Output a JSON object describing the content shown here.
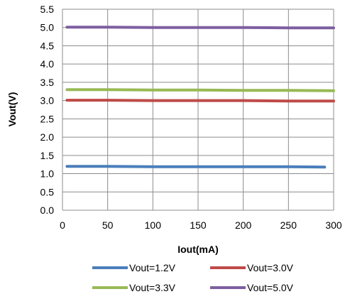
{
  "chart_data": {
    "type": "line",
    "xlabel": "Iout(mA)",
    "ylabel": "Vout(V)",
    "xlim": [
      0,
      300
    ],
    "ylim": [
      0.0,
      5.5
    ],
    "x_ticks": [
      "0",
      "50",
      "100",
      "150",
      "200",
      "250",
      "300"
    ],
    "y_ticks": [
      "0.0",
      "0.5",
      "1.0",
      "1.5",
      "2.0",
      "2.5",
      "3.0",
      "3.5",
      "4.0",
      "4.5",
      "5.0",
      "5.5"
    ],
    "grid": true,
    "legend_position": "bottom",
    "series": [
      {
        "name": "Vout=1.2V",
        "color": "#4a7ebb",
        "x": [
          5,
          50,
          100,
          150,
          200,
          250,
          290
        ],
        "y": [
          1.2,
          1.2,
          1.19,
          1.19,
          1.19,
          1.19,
          1.18
        ]
      },
      {
        "name": "Vout=3.0V",
        "color": "#be4b48",
        "x": [
          5,
          50,
          100,
          150,
          200,
          250,
          300
        ],
        "y": [
          3.01,
          3.01,
          3.0,
          3.0,
          3.0,
          2.99,
          2.99
        ]
      },
      {
        "name": "Vout=3.3V",
        "color": "#98b954",
        "x": [
          5,
          50,
          100,
          150,
          200,
          250,
          300
        ],
        "y": [
          3.3,
          3.3,
          3.29,
          3.29,
          3.28,
          3.28,
          3.27
        ]
      },
      {
        "name": "Vout=5.0V",
        "color": "#7d5fa0",
        "x": [
          5,
          50,
          100,
          150,
          200,
          250,
          300
        ],
        "y": [
          5.01,
          5.01,
          5.0,
          5.0,
          5.0,
          4.99,
          4.99
        ]
      }
    ]
  }
}
